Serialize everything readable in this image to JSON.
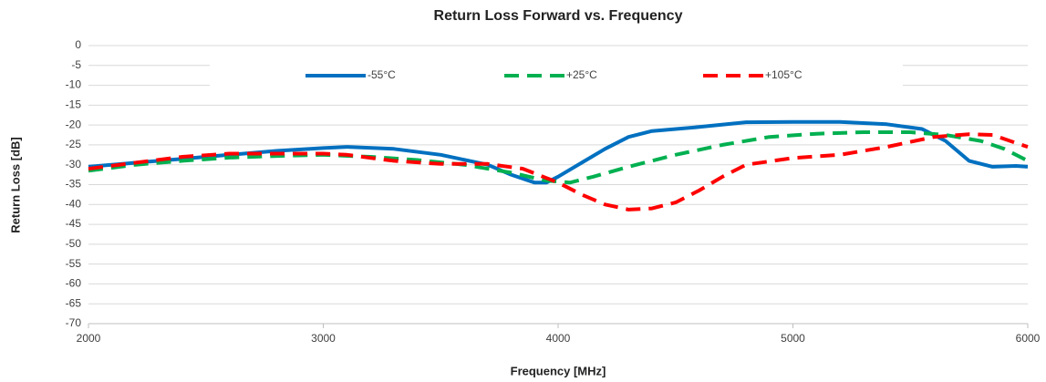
{
  "chart_data": {
    "type": "line",
    "title": "Return Loss Forward vs. Frequency",
    "x_label": "Frequency [MHz]",
    "y_label": "Return Loss [dB]",
    "xlim": [
      2000,
      6000
    ],
    "xticks": [
      2000,
      3000,
      4000,
      5000,
      6000
    ],
    "ylim": [
      -70,
      0
    ],
    "yticks": [
      0,
      -5,
      -10,
      -15,
      -20,
      -25,
      -30,
      -35,
      -40,
      -45,
      -50,
      -55,
      -60,
      -65,
      -70
    ],
    "grid": true,
    "legend": "top",
    "series": [
      {
        "name": "-55°C",
        "color": "#0070c0",
        "dash": "solid",
        "x": [
          2000,
          2200,
          2400,
          2600,
          2800,
          3000,
          3100,
          3300,
          3500,
          3700,
          3800,
          3900,
          3950,
          4000,
          4100,
          4200,
          4300,
          4400,
          4600,
          4800,
          5000,
          5200,
          5400,
          5550,
          5650,
          5750,
          5850,
          5950,
          6000
        ],
        "values": [
          -30.5,
          -29.5,
          -28.5,
          -27.5,
          -26.5,
          -25.8,
          -25.5,
          -26,
          -27.5,
          -30,
          -32.5,
          -34.5,
          -34.5,
          -33,
          -29.5,
          -26,
          -23,
          -21.5,
          -20.5,
          -19.3,
          -19.2,
          -19.2,
          -19.8,
          -21,
          -24,
          -29,
          -30.5,
          -30.3,
          -30.5
        ]
      },
      {
        "name": "+25°C",
        "color": "#00b050",
        "dash": "dashed",
        "x": [
          2000,
          2200,
          2400,
          2600,
          2800,
          3000,
          3200,
          3400,
          3600,
          3800,
          3950,
          4050,
          4150,
          4300,
          4500,
          4700,
          4900,
          5100,
          5300,
          5500,
          5650,
          5800,
          5900,
          6000
        ],
        "values": [
          -31.5,
          -30,
          -29,
          -28.2,
          -27.8,
          -27.5,
          -28,
          -28.8,
          -30,
          -32,
          -34,
          -34.5,
          -33,
          -30.5,
          -27.5,
          -25,
          -23,
          -22.2,
          -21.8,
          -21.8,
          -22.5,
          -24,
          -26,
          -29
        ]
      },
      {
        "name": "+105°C",
        "color": "#ff0000",
        "dash": "dashed",
        "x": [
          2000,
          2200,
          2400,
          2600,
          2800,
          3000,
          3100,
          3300,
          3500,
          3700,
          3850,
          4000,
          4100,
          4200,
          4300,
          4400,
          4500,
          4600,
          4700,
          4800,
          5000,
          5200,
          5400,
          5600,
          5750,
          5850,
          5950,
          6000
        ],
        "values": [
          -31,
          -29.5,
          -28,
          -27.2,
          -27.2,
          -27.2,
          -27.5,
          -29,
          -29.8,
          -29.8,
          -31,
          -34.5,
          -37.5,
          -40,
          -41.3,
          -41,
          -39.5,
          -36.5,
          -33,
          -30,
          -28.3,
          -27.5,
          -25.5,
          -23,
          -22.3,
          -22.5,
          -24.5,
          -25.5
        ]
      }
    ]
  }
}
